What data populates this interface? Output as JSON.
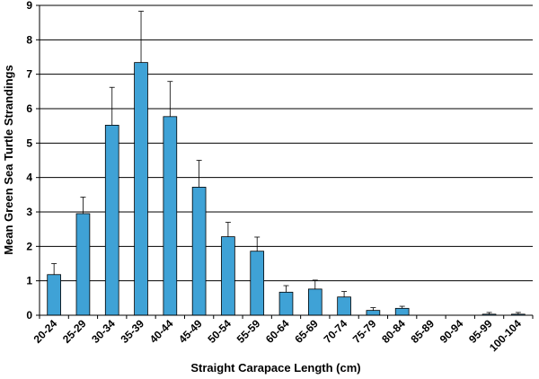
{
  "chart_data": {
    "type": "bar",
    "title": "",
    "xlabel": "Straight Carapace Length (cm)",
    "ylabel": "Mean Green Sea Turtle Strandings",
    "ylim": [
      0,
      9
    ],
    "yticks": [
      0,
      1,
      2,
      3,
      4,
      5,
      6,
      7,
      8,
      9
    ],
    "grid": true,
    "bar_color": "#3fa2d6",
    "categories": [
      "20-24",
      "25-29",
      "30-34",
      "35-39",
      "40-44",
      "45-49",
      "50-54",
      "55-59",
      "60-64",
      "65-69",
      "70-74",
      "75-79",
      "80-84",
      "85-89",
      "90-94",
      "95-99",
      "100-104"
    ],
    "values": [
      1.18,
      2.95,
      5.52,
      7.34,
      5.77,
      3.72,
      2.28,
      1.86,
      0.67,
      0.76,
      0.53,
      0.14,
      0.2,
      0,
      0,
      0.03,
      0.03
    ],
    "error_upper": [
      0.32,
      0.48,
      1.1,
      1.49,
      1.02,
      0.78,
      0.42,
      0.41,
      0.19,
      0.26,
      0.16,
      0.08,
      0.06,
      0,
      0,
      0.05,
      0.05
    ]
  }
}
